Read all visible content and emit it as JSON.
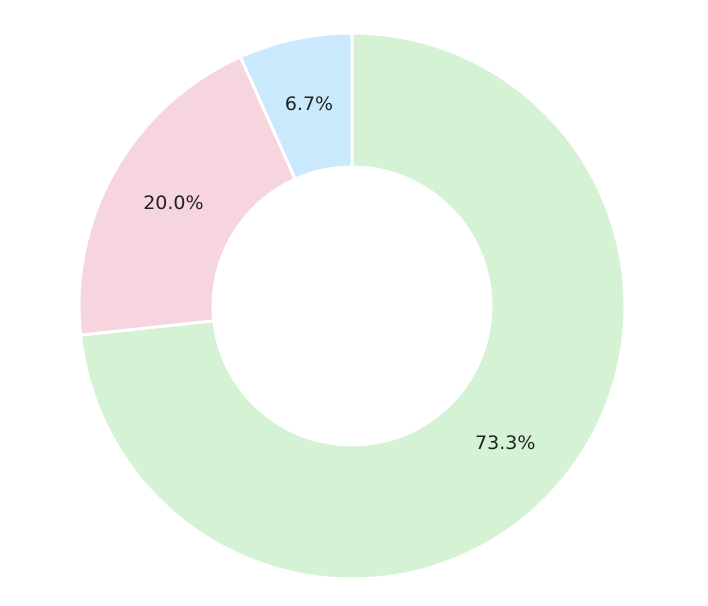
{
  "chart_data": {
    "type": "donut",
    "values": [
      73.3,
      20.0,
      6.7
    ],
    "value_labels": [
      "73.3%",
      "20.0%",
      "6.7%"
    ],
    "colors": [
      "#d5f2d4",
      "#f6d5df",
      "#cbe9fc"
    ]
  }
}
